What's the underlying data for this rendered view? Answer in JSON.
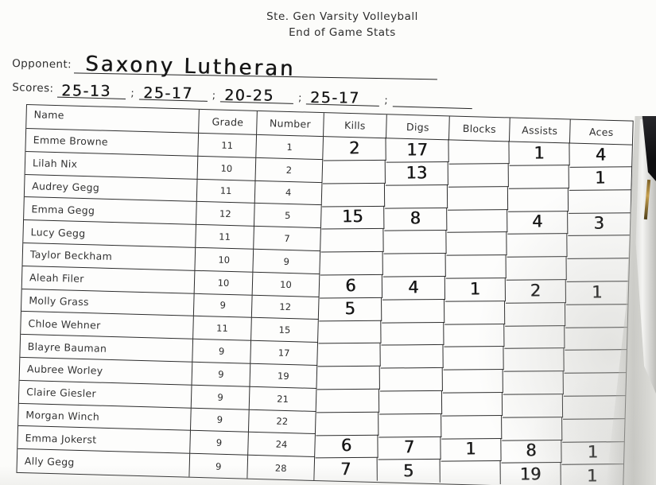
{
  "title": {
    "line1": "Ste. Gen Varsity Volleyball",
    "line2": "End of Game Stats"
  },
  "opponent": {
    "label": "Opponent:",
    "value": "Saxony Lutheran"
  },
  "scores": {
    "label": "Scores:",
    "separator": ";",
    "values": [
      "25-13",
      "25-17",
      "20-25",
      "25-17",
      ""
    ]
  },
  "table": {
    "headers": [
      "Name",
      "Grade",
      "Number",
      "Kills",
      "Digs",
      "Blocks",
      "Assists",
      "Aces"
    ],
    "columns": [
      "name",
      "grade",
      "number",
      "kills",
      "digs",
      "blocks",
      "assists",
      "aces"
    ],
    "rows": [
      {
        "name": "Emme Browne",
        "grade": "11",
        "number": "1",
        "kills": "2",
        "digs": "17",
        "blocks": "",
        "assists": "1",
        "aces": "4"
      },
      {
        "name": "Lilah Nix",
        "grade": "10",
        "number": "2",
        "kills": "",
        "digs": "13",
        "blocks": "",
        "assists": "",
        "aces": "1"
      },
      {
        "name": "Audrey Gegg",
        "grade": "11",
        "number": "4",
        "kills": "",
        "digs": "",
        "blocks": "",
        "assists": "",
        "aces": ""
      },
      {
        "name": "Emma Gegg",
        "grade": "12",
        "number": "5",
        "kills": "15",
        "digs": "8",
        "blocks": "",
        "assists": "4",
        "aces": "3"
      },
      {
        "name": "Lucy Gegg",
        "grade": "11",
        "number": "7",
        "kills": "",
        "digs": "",
        "blocks": "",
        "assists": "",
        "aces": ""
      },
      {
        "name": "Taylor Beckham",
        "grade": "10",
        "number": "9",
        "kills": "",
        "digs": "",
        "blocks": "",
        "assists": "",
        "aces": ""
      },
      {
        "name": "Aleah Filer",
        "grade": "10",
        "number": "10",
        "kills": "6",
        "digs": "4",
        "blocks": "1",
        "assists": "2",
        "aces": "1"
      },
      {
        "name": "Molly Grass",
        "grade": "9",
        "number": "12",
        "kills": "5",
        "digs": "",
        "blocks": "",
        "assists": "",
        "aces": ""
      },
      {
        "name": "Chloe Wehner",
        "grade": "11",
        "number": "15",
        "kills": "",
        "digs": "",
        "blocks": "",
        "assists": "",
        "aces": ""
      },
      {
        "name": "Blayre Bauman",
        "grade": "9",
        "number": "17",
        "kills": "",
        "digs": "",
        "blocks": "",
        "assists": "",
        "aces": ""
      },
      {
        "name": "Aubree Worley",
        "grade": "9",
        "number": "19",
        "kills": "",
        "digs": "",
        "blocks": "",
        "assists": "",
        "aces": ""
      },
      {
        "name": "Claire Giesler",
        "grade": "9",
        "number": "21",
        "kills": "",
        "digs": "",
        "blocks": "",
        "assists": "",
        "aces": ""
      },
      {
        "name": "Morgan Winch",
        "grade": "9",
        "number": "22",
        "kills": "",
        "digs": "",
        "blocks": "",
        "assists": "",
        "aces": ""
      },
      {
        "name": "Emma Jokerst",
        "grade": "9",
        "number": "24",
        "kills": "6",
        "digs": "7",
        "blocks": "1",
        "assists": "8",
        "aces": "1"
      },
      {
        "name": "Ally Gegg",
        "grade": "9",
        "number": "28",
        "kills": "7",
        "digs": "5",
        "blocks": "",
        "assists": "19",
        "aces": "1"
      }
    ]
  }
}
